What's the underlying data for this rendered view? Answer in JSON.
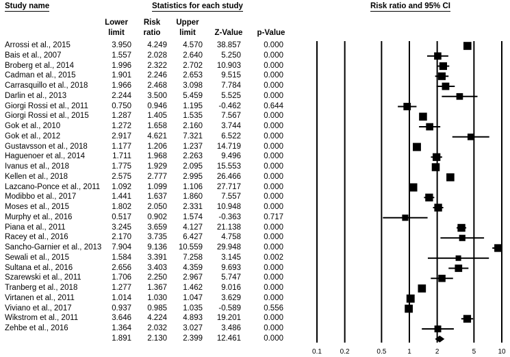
{
  "headers": {
    "study_name": "Study name",
    "statistics": "Statistics for each study",
    "plot_title": "Risk ratio and 95% CI",
    "lower1": "Lower",
    "lower2": "limit",
    "rr1": "Risk",
    "rr2": "ratio",
    "upper1": "Upper",
    "upper2": "limit",
    "z": "Z-Value",
    "p": "p-Value"
  },
  "chart_data": {
    "type": "forest",
    "title": "Risk ratio and 95% CI",
    "x_scale": "log",
    "xlim": [
      0.1,
      10
    ],
    "x_ticks": [
      "0.1",
      "0.2",
      "0.5",
      "1",
      "2",
      "5",
      "10"
    ],
    "x_tick_values": [
      0.1,
      0.2,
      0.5,
      1,
      2,
      5,
      10
    ],
    "grid": "vertical lines at ticks",
    "studies": [
      {
        "name": "Arrossi et al., 2015",
        "lower": "3.950",
        "rr": "4.249",
        "upper": "4.570",
        "z": "38.857",
        "p": "0.000"
      },
      {
        "name": "Bais et al., 2007",
        "lower": "1.557",
        "rr": "2.028",
        "upper": "2.640",
        "z": "5.250",
        "p": "0.000"
      },
      {
        "name": "Broberg et al., 2014",
        "lower": "1.996",
        "rr": "2.322",
        "upper": "2.702",
        "z": "10.903",
        "p": "0.000"
      },
      {
        "name": "Cadman et al., 2015",
        "lower": "1.901",
        "rr": "2.246",
        "upper": "2.653",
        "z": "9.515",
        "p": "0.000"
      },
      {
        "name": "Carrasquillo et al., 2018",
        "lower": "1.966",
        "rr": "2.468",
        "upper": "3.098",
        "z": "7.784",
        "p": "0.000"
      },
      {
        "name": "Darlin et al., 2013",
        "lower": "2.244",
        "rr": "3.500",
        "upper": "5.459",
        "z": "5.525",
        "p": "0.000"
      },
      {
        "name": "Giorgi Rossi et al., 2011",
        "lower": "0.750",
        "rr": "0.946",
        "upper": "1.195",
        "z": "-0.462",
        "p": "0.644"
      },
      {
        "name": "Giorgi Rossi et al., 2015",
        "lower": "1.287",
        "rr": "1.405",
        "upper": "1.535",
        "z": "7.567",
        "p": "0.000"
      },
      {
        "name": "Gok et al., 2010",
        "lower": "1.272",
        "rr": "1.658",
        "upper": "2.160",
        "z": "3.744",
        "p": "0.000"
      },
      {
        "name": "Gok et al., 2012",
        "lower": "2.917",
        "rr": "4.621",
        "upper": "7.321",
        "z": "6.522",
        "p": "0.000"
      },
      {
        "name": "Gustavsson et al., 2018",
        "lower": "1.177",
        "rr": "1.206",
        "upper": "1.237",
        "z": "14.719",
        "p": "0.000"
      },
      {
        "name": "Haguenoer et al., 2014",
        "lower": "1.711",
        "rr": "1.968",
        "upper": "2.263",
        "z": "9.496",
        "p": "0.000"
      },
      {
        "name": "Ivanus et al., 2018",
        "lower": "1.775",
        "rr": "1.929",
        "upper": "2.095",
        "z": "15.553",
        "p": "0.000"
      },
      {
        "name": "Kellen et al., 2018",
        "lower": "2.575",
        "rr": "2.777",
        "upper": "2.995",
        "z": "26.466",
        "p": "0.000"
      },
      {
        "name": "Lazcano-Ponce et al., 2011",
        "lower": "1.092",
        "rr": "1.099",
        "upper": "1.106",
        "z": "27.717",
        "p": "0.000"
      },
      {
        "name": "Modibbo et al., 2017",
        "lower": "1.441",
        "rr": "1.637",
        "upper": "1.860",
        "z": "7.557",
        "p": "0.000"
      },
      {
        "name": "Moses et al., 2015",
        "lower": "1.802",
        "rr": "2.050",
        "upper": "2.331",
        "z": "10.948",
        "p": "0.000"
      },
      {
        "name": "Murphy et al., 2016",
        "lower": "0.517",
        "rr": "0.902",
        "upper": "1.574",
        "z": "-0.363",
        "p": "0.717"
      },
      {
        "name": "Piana et al.,  2011",
        "lower": "3.245",
        "rr": "3.659",
        "upper": "4.127",
        "z": "21.138",
        "p": "0.000"
      },
      {
        "name": "Racey et al., 2016",
        "lower": "2.170",
        "rr": "3.735",
        "upper": "6.427",
        "z": "4.758",
        "p": "0.000"
      },
      {
        "name": "Sancho-Garnier et al., 2013",
        "lower": "7.904",
        "rr": "9.136",
        "upper": "10.559",
        "z": "29.948",
        "p": "0.000"
      },
      {
        "name": "Sewali et al., 2015",
        "lower": "1.584",
        "rr": "3.391",
        "upper": "7.258",
        "z": "3.145",
        "p": "0.002"
      },
      {
        "name": "Sultana et al., 2016",
        "lower": "2.656",
        "rr": "3.403",
        "upper": "4.359",
        "z": "9.693",
        "p": "0.000"
      },
      {
        "name": "Szarewski et al., 2011",
        "lower": "1.706",
        "rr": "2.250",
        "upper": "2.967",
        "z": "5.747",
        "p": "0.000"
      },
      {
        "name": "Tranberg et al., 2018",
        "lower": "1.277",
        "rr": "1.367",
        "upper": "1.462",
        "z": "9.016",
        "p": "0.000"
      },
      {
        "name": "Virtanen et al., 2011",
        "lower": "1.014",
        "rr": "1.030",
        "upper": "1.047",
        "z": "3.629",
        "p": "0.000"
      },
      {
        "name": "Viviano et al., 2017",
        "lower": "0.937",
        "rr": "0.985",
        "upper": "1.035",
        "z": "-0.589",
        "p": "0.556"
      },
      {
        "name": "Wikstrom et al., 2011",
        "lower": "3.646",
        "rr": "4.224",
        "upper": "4.893",
        "z": "19.201",
        "p": "0.000"
      },
      {
        "name": "Zehbe et al., 2016",
        "lower": "1.364",
        "rr": "2.032",
        "upper": "3.027",
        "z": "3.486",
        "p": "0.000"
      }
    ],
    "summary": {
      "name": "",
      "lower": "1.891",
      "rr": "2.130",
      "upper": "2.399",
      "z": "12.461",
      "p": "0.000"
    }
  }
}
